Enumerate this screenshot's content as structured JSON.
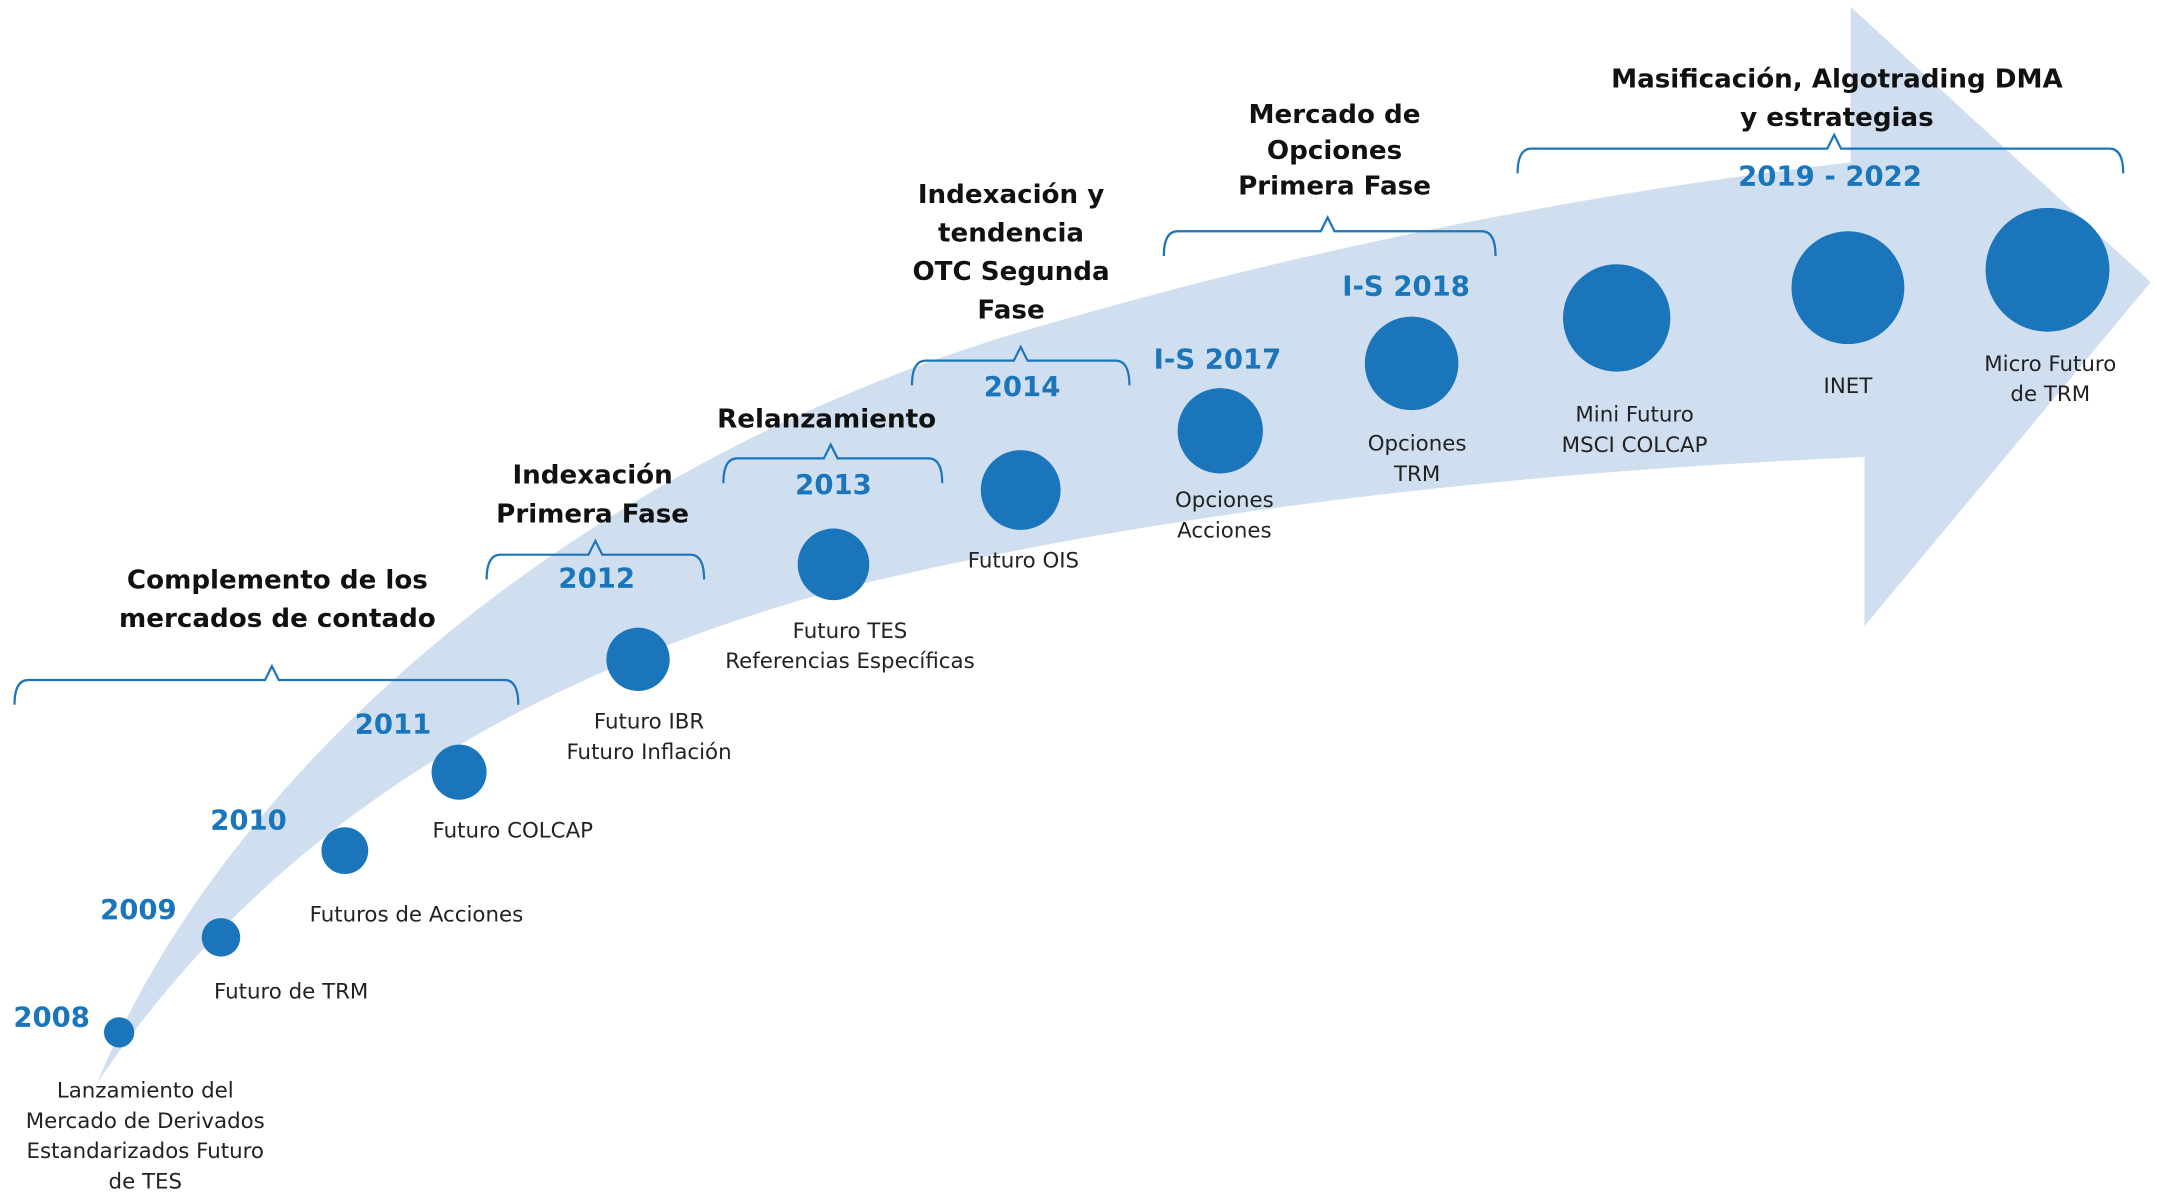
{
  "milestones": [
    {
      "year": "2008",
      "label": [
        "Lanzamiento del",
        "Mercado de Derivados",
        "Estandarizados Futuro",
        "de TES"
      ]
    },
    {
      "year": "2009",
      "label": [
        "Futuro de TRM"
      ]
    },
    {
      "year": "2010",
      "label": [
        "Futuros de Acciones"
      ]
    },
    {
      "year": "2011",
      "label": [
        "Futuro COLCAP"
      ]
    },
    {
      "year": "2012",
      "label": [
        "Futuro IBR",
        "Futuro Inflación"
      ]
    },
    {
      "year": "2013",
      "label": [
        "Futuro TES",
        "Referencias Específicas"
      ]
    },
    {
      "year": "2014",
      "label": [
        "Futuro OIS"
      ]
    },
    {
      "year": "I-S 2017",
      "label": [
        "Opciones",
        "Acciones"
      ]
    },
    {
      "year": "I-S 2018",
      "label": [
        "Opciones",
        "TRM"
      ]
    },
    {
      "label": [
        "Mini Futuro",
        "MSCI COLCAP"
      ]
    },
    {
      "year": "2019 - 2022",
      "label": [
        "INET"
      ]
    },
    {
      "label": [
        "Micro Futuro",
        "de TRM"
      ]
    }
  ],
  "phases": [
    {
      "title": [
        "Complemento de los",
        "mercados de contado"
      ]
    },
    {
      "title": [
        "Indexación",
        "Primera Fase"
      ]
    },
    {
      "title": [
        "Relanzamiento"
      ]
    },
    {
      "title": [
        "Indexación y",
        "tendencia",
        "OTC Segunda",
        "Fase"
      ]
    },
    {
      "title": [
        "Mercado de",
        "Opciones",
        "Primera Fase"
      ]
    },
    {
      "title": [
        "Masificación, Algotrading DMA",
        "y estrategias"
      ]
    }
  ]
}
